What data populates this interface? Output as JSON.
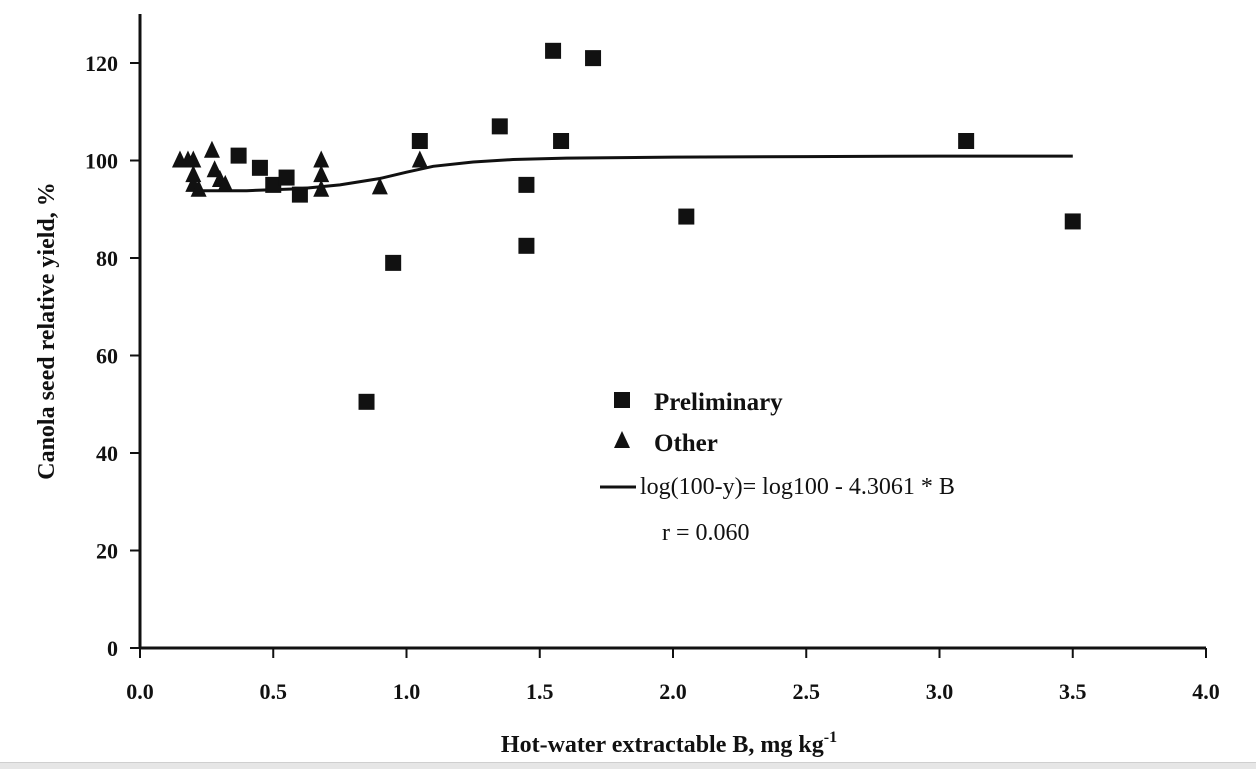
{
  "chart_data": {
    "type": "scatter",
    "title": "",
    "xlabel": "Hot-water extractable B, mg kg",
    "xlabel_superscript": "-1",
    "ylabel": "Canola seed relative yield, %",
    "xlim": [
      0.0,
      4.0
    ],
    "ylim": [
      0,
      130
    ],
    "x_ticks": [
      "0.0",
      "0.5",
      "1.0",
      "1.5",
      "2.0",
      "2.5",
      "3.0",
      "3.5",
      "4.0"
    ],
    "y_ticks": [
      "0",
      "20",
      "40",
      "60",
      "80",
      "100",
      "120"
    ],
    "grid": false,
    "legend_position": "lower-right",
    "series": [
      {
        "name": "Preliminary",
        "marker": "square",
        "points": [
          [
            0.37,
            101
          ],
          [
            0.45,
            98.5
          ],
          [
            0.5,
            95
          ],
          [
            0.55,
            96.5
          ],
          [
            0.6,
            93
          ],
          [
            0.85,
            50.5
          ],
          [
            0.95,
            79
          ],
          [
            1.05,
            104
          ],
          [
            1.35,
            107
          ],
          [
            1.45,
            95
          ],
          [
            1.45,
            82.5
          ],
          [
            1.55,
            122.5
          ],
          [
            1.58,
            104
          ],
          [
            1.7,
            121
          ],
          [
            2.05,
            88.5
          ],
          [
            3.1,
            104
          ],
          [
            3.5,
            87.5
          ]
        ]
      },
      {
        "name": "Other",
        "marker": "triangle",
        "points": [
          [
            0.15,
            100
          ],
          [
            0.18,
            100
          ],
          [
            0.2,
            100
          ],
          [
            0.2,
            97
          ],
          [
            0.2,
            95
          ],
          [
            0.22,
            94
          ],
          [
            0.27,
            102
          ],
          [
            0.28,
            98
          ],
          [
            0.3,
            96
          ],
          [
            0.32,
            95
          ],
          [
            0.68,
            100
          ],
          [
            0.68,
            97
          ],
          [
            0.68,
            94
          ],
          [
            0.9,
            94.5
          ],
          [
            1.05,
            100
          ]
        ]
      }
    ],
    "fit_line": {
      "name": "log(100-y)= log100 - 4.3061 * B",
      "points": [
        [
          0.2,
          93.8
        ],
        [
          0.4,
          93.8
        ],
        [
          0.6,
          94.2
        ],
        [
          0.75,
          95.0
        ],
        [
          0.9,
          96.3
        ],
        [
          1.0,
          97.6
        ],
        [
          1.1,
          98.8
        ],
        [
          1.25,
          99.7
        ],
        [
          1.4,
          100.2
        ],
        [
          1.6,
          100.5
        ],
        [
          2.0,
          100.7
        ],
        [
          2.5,
          100.8
        ],
        [
          3.0,
          100.9
        ],
        [
          3.5,
          100.9
        ]
      ]
    },
    "annotation": "r = 0.060"
  }
}
